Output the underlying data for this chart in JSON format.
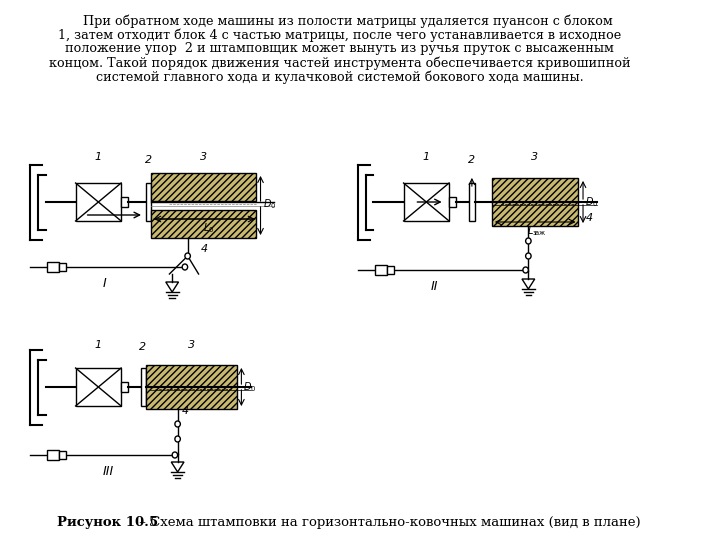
{
  "caption_bold": "Рисунок 10.5",
  "caption_normal": " – Схема штамповки на горизонтально-ковочных машинах (вид в плане)",
  "para_lines": [
    "    При обратном ходе машины из полости матрицы удаляется пуансон с блоком",
    "1, затем отходит блок 4 с частью матрицы, после чего устанавливается в исходное",
    "положение упор  2 и штамповщик может вынуть из ручья пруток с высаженным",
    "концом. Такой порядок движения частей инструмента обеспечивается кривошипной",
    "системой главного хода и кулачковой системой бокового хода машины."
  ],
  "bg_color": "#ffffff",
  "hatch_fc": "#c8b870",
  "lw_frame": 1.5,
  "lw_main": 1.0,
  "lw_dim": 0.8
}
